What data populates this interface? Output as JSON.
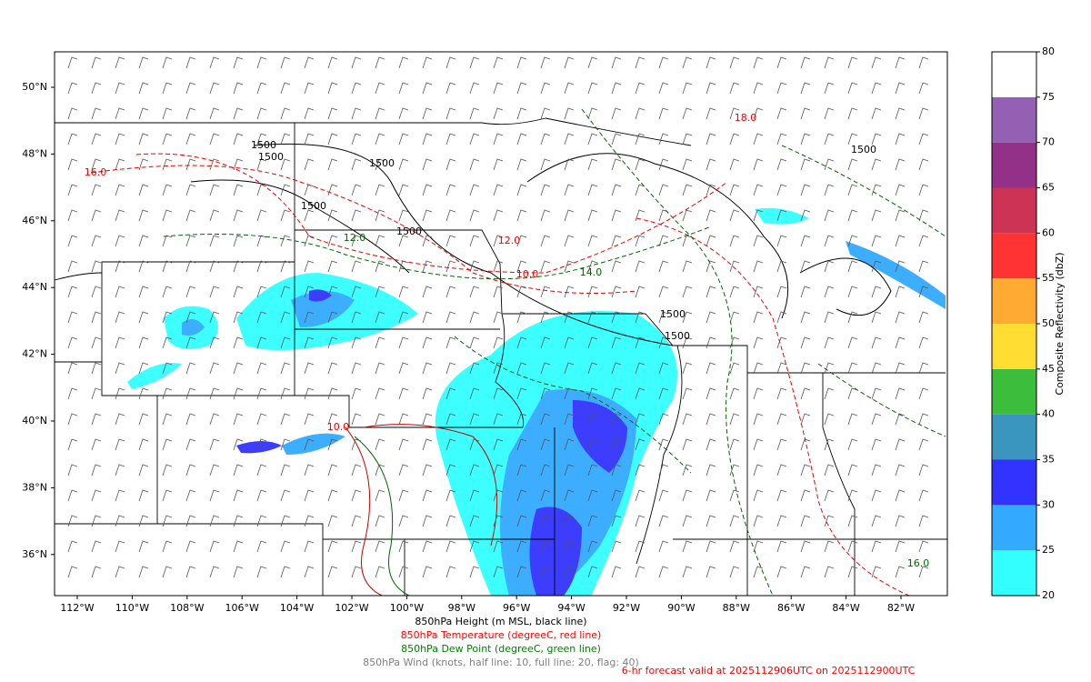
{
  "map": {
    "lat_ticks": [
      {
        "value": 50,
        "label": "50°N"
      },
      {
        "value": 48,
        "label": "48°N"
      },
      {
        "value": 46,
        "label": "46°N"
      },
      {
        "value": 44,
        "label": "44°N"
      },
      {
        "value": 42,
        "label": "42°N"
      },
      {
        "value": 40,
        "label": "40°N"
      },
      {
        "value": 38,
        "label": "38°N"
      },
      {
        "value": 36,
        "label": "36°N"
      }
    ],
    "lon_ticks": [
      {
        "value": -112,
        "label": "112°W"
      },
      {
        "value": -110,
        "label": "110°W"
      },
      {
        "value": -108,
        "label": "108°W"
      },
      {
        "value": -106,
        "label": "106°W"
      },
      {
        "value": -104,
        "label": "104°W"
      },
      {
        "value": -102,
        "label": "102°W"
      },
      {
        "value": -100,
        "label": "100°W"
      },
      {
        "value": -98,
        "label": "98°W"
      },
      {
        "value": -96,
        "label": "96°W"
      },
      {
        "value": -94,
        "label": "94°W"
      },
      {
        "value": -92,
        "label": "92°W"
      },
      {
        "value": -90,
        "label": "90°W"
      },
      {
        "value": -88,
        "label": "88°W"
      },
      {
        "value": -86,
        "label": "86°W"
      },
      {
        "value": -84,
        "label": "84°W"
      },
      {
        "value": -82,
        "label": "82°W"
      }
    ],
    "contour_labels": [
      "1500",
      "1500",
      "1500",
      "1500",
      "1500",
      "1500",
      "1500",
      "1500",
      "10.0",
      "16.0",
      "12.0",
      "18.0",
      "14.0",
      "10.0",
      "12.0",
      "16.0"
    ]
  },
  "colorbar": {
    "label": "Composite Reflectivity (dbZ)",
    "ticks": [
      20,
      25,
      30,
      35,
      40,
      45,
      50,
      55,
      60,
      65,
      70,
      75,
      80
    ],
    "colors": [
      "#33ffff",
      "#33aaff",
      "#3333ff",
      "#3a96be",
      "#3cbe3c",
      "#ffdd33",
      "#ffaa33",
      "#ff3333",
      "#cc3355",
      "#933088",
      "#9460b4",
      "#ffffff"
    ]
  },
  "captions": [
    {
      "text": "850hPa Height (m MSL, black line)",
      "color": "#000000"
    },
    {
      "text": "850hPa Temperature (degreeC, red line)",
      "color": "#ff0000"
    },
    {
      "text": "850hPa Dew Point (degreeC, green line)",
      "color": "#008000"
    },
    {
      "text": "850hPa Wind (knots, half line: 10, full line: 20, flag: 40)",
      "color": "#808080"
    }
  ],
  "forecast": {
    "text": "6-hr forecast valid at 2025112906UTC on 2025112900UTC",
    "color": "#ff0000"
  }
}
